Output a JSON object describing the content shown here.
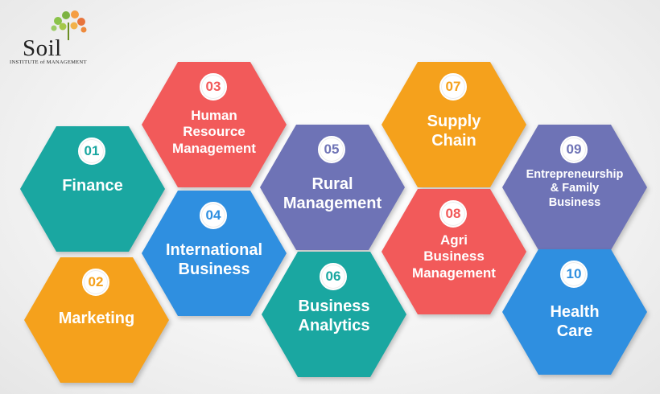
{
  "logo": {
    "name": "Soil",
    "tagline": "INSTITUTE of MANAGEMENT"
  },
  "hexagons": [
    {
      "number": "01",
      "label": "Finance",
      "color": "#1aa7a1"
    },
    {
      "number": "02",
      "label": "Marketing",
      "color": "#f5a11c"
    },
    {
      "number": "03",
      "label": "Human\nResource\nManagement",
      "color": "#f25a5a"
    },
    {
      "number": "04",
      "label": "International\nBusiness",
      "color": "#2f8fe0"
    },
    {
      "number": "05",
      "label": "Rural\nManagement",
      "color": "#6e73b6"
    },
    {
      "number": "06",
      "label": "Business\nAnalytics",
      "color": "#1aa7a1"
    },
    {
      "number": "07",
      "label": "Supply\nChain",
      "color": "#f5a11c"
    },
    {
      "number": "08",
      "label": "Agri\nBusiness\nManagement",
      "color": "#f25a5a"
    },
    {
      "number": "09",
      "label": "Entrepreneurship\n& Family\nBusiness",
      "color": "#6e73b6"
    },
    {
      "number": "10",
      "label": "Health\nCare",
      "color": "#2f8fe0"
    }
  ]
}
